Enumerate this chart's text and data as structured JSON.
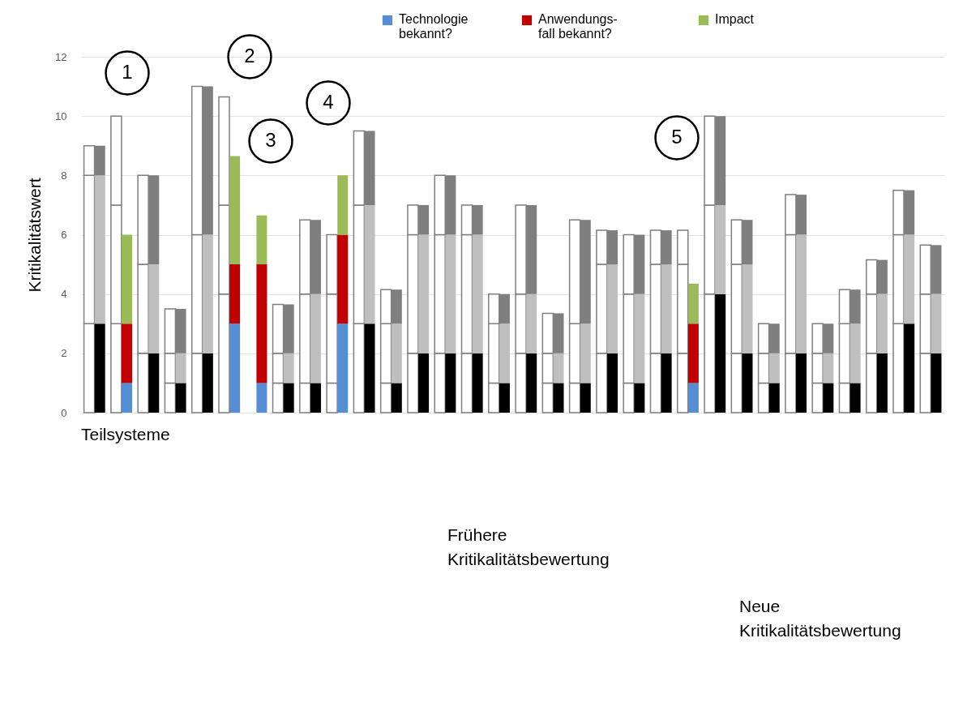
{
  "chart_data": {
    "type": "bar",
    "stacked": true,
    "ylabel": "Kritikalitätswert",
    "xlabel": "Teilsysteme",
    "ylim": [
      0,
      12
    ],
    "yticks": [
      0,
      2,
      4,
      6,
      8,
      10,
      12
    ],
    "grid": "y",
    "legend": "top",
    "tick_labels": "y",
    "categories": [
      null,
      null,
      null,
      null,
      null,
      null,
      null,
      null,
      null,
      null,
      null,
      null,
      null,
      null,
      null,
      null,
      null,
      null,
      null,
      null,
      null,
      null,
      null,
      null,
      null,
      null,
      null,
      null,
      null,
      null,
      null,
      null,
      null,
      null,
      null,
      null,
      null,
      null,
      null,
      null,
      null,
      null,
      null,
      null,
      null,
      null,
      null,
      null,
      null,
      null,
      null,
      null,
      null,
      null,
      null,
      null,
      null,
      null,
      null,
      null,
      null,
      null,
      null,
      null
    ],
    "series": [
      {
        "name": "Technologie\nbekannt?",
        "color": "#558ed5",
        "values": [
          3,
          3,
          3,
          1,
          2,
          2,
          1,
          1,
          2,
          2,
          4,
          3,
          null,
          1,
          1,
          1,
          1,
          1,
          1,
          3,
          3,
          3,
          1,
          1,
          2,
          2,
          2,
          2,
          2,
          2,
          1,
          1,
          2,
          2,
          1,
          1,
          1,
          1,
          2,
          2,
          1,
          1,
          2,
          2,
          2,
          1,
          4,
          4,
          2,
          2,
          1,
          1,
          2,
          2,
          1,
          1,
          1,
          1,
          2,
          2,
          3,
          3,
          2,
          2
        ],
        "colors": [
          "#ffffff",
          "#000000",
          "#ffffff",
          "#558ed5",
          "#ffffff",
          "#000000",
          "#ffffff",
          "#000000",
          "#ffffff",
          "#000000",
          "#ffffff",
          "#558ed5",
          null,
          "#558ed5",
          "#ffffff",
          "#000000",
          "#ffffff",
          "#000000",
          "#ffffff",
          "#558ed5",
          "#ffffff",
          "#000000",
          "#ffffff",
          "#000000",
          "#ffffff",
          "#000000",
          "#ffffff",
          "#000000",
          "#ffffff",
          "#000000",
          "#ffffff",
          "#000000",
          "#ffffff",
          "#000000",
          "#ffffff",
          "#000000",
          "#ffffff",
          "#000000",
          "#ffffff",
          "#000000",
          "#ffffff",
          "#000000",
          "#ffffff",
          "#000000",
          "#ffffff",
          "#558ed5",
          "#ffffff",
          "#000000",
          "#ffffff",
          "#000000",
          "#ffffff",
          "#000000",
          "#ffffff",
          "#000000",
          "#ffffff",
          "#000000",
          "#ffffff",
          "#000000",
          "#ffffff",
          "#000000",
          "#ffffff",
          "#000000",
          "#ffffff",
          "#000000"
        ]
      },
      {
        "name": "Anwendungs-\nfall bekannt?",
        "color": "#c00000",
        "values": [
          5,
          5,
          4,
          2,
          3,
          3,
          1,
          1,
          4,
          4,
          3,
          2,
          null,
          4,
          1,
          1,
          3,
          3,
          3,
          3,
          4,
          4,
          2,
          2,
          4,
          4,
          4,
          4,
          4,
          4,
          2,
          2,
          2,
          2,
          1,
          1,
          2,
          2,
          3,
          3,
          3,
          3,
          3,
          3,
          3,
          2,
          3,
          3,
          3,
          3,
          1,
          1,
          4,
          4,
          1,
          1,
          2,
          2,
          2,
          2,
          3,
          3,
          2,
          2
        ],
        "colors": [
          "#ffffff",
          "#bfbfbf",
          "#ffffff",
          "#c00000",
          "#ffffff",
          "#bfbfbf",
          "#ffffff",
          "#bfbfbf",
          "#ffffff",
          "#bfbfbf",
          "#ffffff",
          "#c00000",
          null,
          "#c00000",
          "#ffffff",
          "#bfbfbf",
          "#ffffff",
          "#bfbfbf",
          "#ffffff",
          "#c00000",
          "#ffffff",
          "#bfbfbf",
          "#ffffff",
          "#bfbfbf",
          "#ffffff",
          "#bfbfbf",
          "#ffffff",
          "#bfbfbf",
          "#ffffff",
          "#bfbfbf",
          "#ffffff",
          "#bfbfbf",
          "#ffffff",
          "#bfbfbf",
          "#ffffff",
          "#bfbfbf",
          "#ffffff",
          "#bfbfbf",
          "#ffffff",
          "#bfbfbf",
          "#ffffff",
          "#bfbfbf",
          "#ffffff",
          "#bfbfbf",
          "#ffffff",
          "#c00000",
          "#ffffff",
          "#bfbfbf",
          "#ffffff",
          "#bfbfbf",
          "#ffffff",
          "#bfbfbf",
          "#ffffff",
          "#bfbfbf",
          "#ffffff",
          "#bfbfbf",
          "#ffffff",
          "#bfbfbf",
          "#ffffff",
          "#bfbfbf",
          "#ffffff",
          "#bfbfbf",
          "#ffffff",
          "#bfbfbf"
        ]
      },
      {
        "name": "Impact",
        "color": "#9bbb59",
        "values": [
          1,
          1,
          3,
          3,
          3,
          3,
          1.5,
          1.5,
          5,
          5,
          3.65,
          3.65,
          null,
          1.65,
          1.65,
          1.65,
          2.5,
          2.5,
          2,
          2,
          2.5,
          2.5,
          1.15,
          1.15,
          1,
          1,
          2,
          2,
          1,
          1,
          1,
          1,
          3,
          3,
          1.35,
          1.35,
          3.5,
          3.5,
          1.15,
          1.15,
          2,
          2,
          1.15,
          1.15,
          1.15,
          1.35,
          3,
          3,
          1.5,
          1.5,
          1,
          1,
          1.35,
          1.35,
          1,
          1,
          1.15,
          1.15,
          1.15,
          1.15,
          1.5,
          1.5,
          1.65,
          1.65
        ],
        "colors": [
          "#ffffff",
          "#7f7f7f",
          "#ffffff",
          "#9bbb59",
          "#ffffff",
          "#7f7f7f",
          "#ffffff",
          "#7f7f7f",
          "#ffffff",
          "#7f7f7f",
          "#ffffff",
          "#9bbb59",
          null,
          "#9bbb59",
          "#ffffff",
          "#7f7f7f",
          "#ffffff",
          "#7f7f7f",
          "#ffffff",
          "#9bbb59",
          "#ffffff",
          "#7f7f7f",
          "#ffffff",
          "#7f7f7f",
          "#ffffff",
          "#7f7f7f",
          "#ffffff",
          "#7f7f7f",
          "#ffffff",
          "#7f7f7f",
          "#ffffff",
          "#7f7f7f",
          "#ffffff",
          "#7f7f7f",
          "#ffffff",
          "#7f7f7f",
          "#ffffff",
          "#7f7f7f",
          "#ffffff",
          "#7f7f7f",
          "#ffffff",
          "#7f7f7f",
          "#ffffff",
          "#7f7f7f",
          "#ffffff",
          "#9bbb59",
          "#ffffff",
          "#7f7f7f",
          "#ffffff",
          "#7f7f7f",
          "#ffffff",
          "#7f7f7f",
          "#ffffff",
          "#7f7f7f",
          "#ffffff",
          "#7f7f7f",
          "#ffffff",
          "#7f7f7f",
          "#ffffff",
          "#7f7f7f",
          "#ffffff",
          "#7f7f7f",
          "#ffffff",
          "#7f7f7f"
        ]
      }
    ],
    "annotations": [
      "1",
      "2",
      "3",
      "4",
      "5",
      "Frühere\nKritikalitätsbewertung",
      "Neue\nKritikalitätsbewertung"
    ]
  }
}
